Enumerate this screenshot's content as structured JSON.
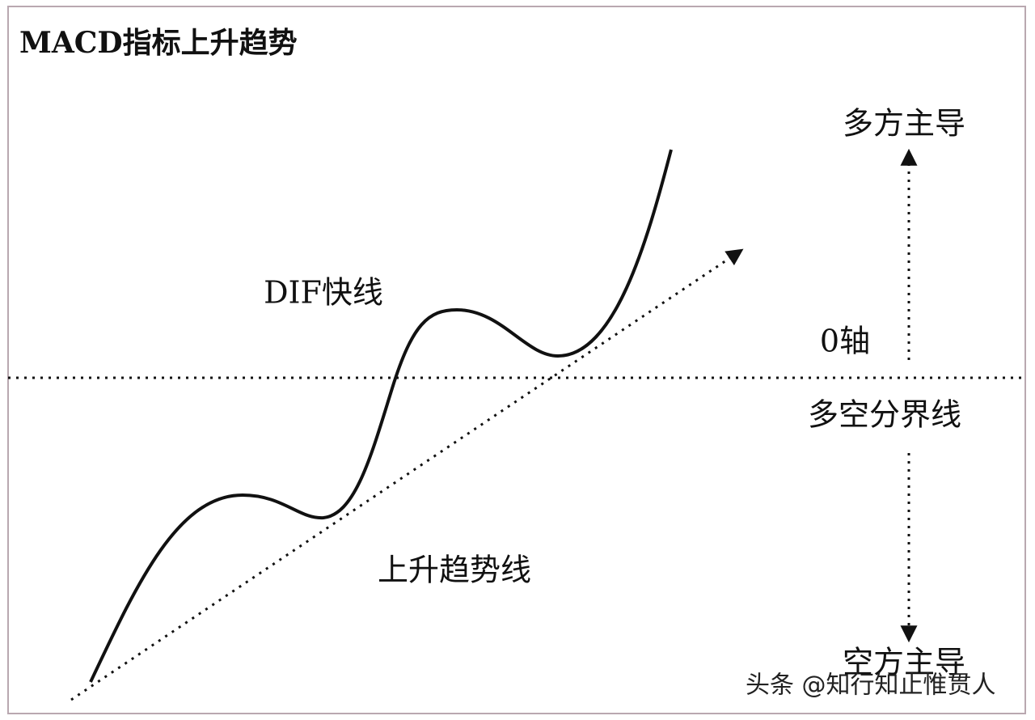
{
  "title": "MACD指标上升趋势",
  "labels": {
    "bull": "多方主导",
    "dif": "DIF快线",
    "zero_axis": "0轴",
    "divider": "多空分界线",
    "trend_line": "上升趋势线",
    "bear": "空方主导"
  },
  "watermark": "头条 @知行知止惟贯人"
}
